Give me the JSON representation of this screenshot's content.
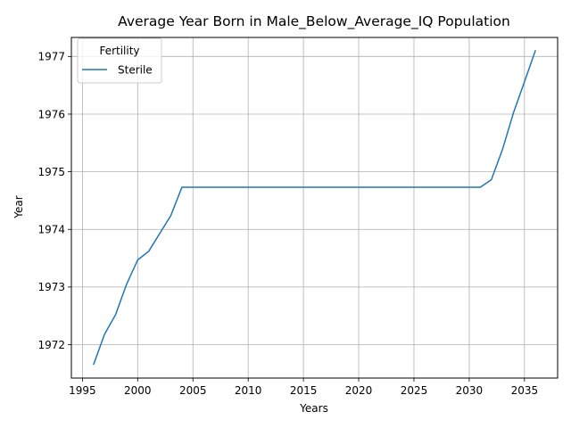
{
  "chart_data": {
    "type": "line",
    "title": "Average Year Born in Male_Below_Average_IQ Population",
    "xlabel": "Years",
    "ylabel": "Year",
    "xlim": [
      1994.0,
      2038.0
    ],
    "ylim": [
      1971.42,
      1977.33
    ],
    "xticks": [
      1995,
      2000,
      2005,
      2010,
      2015,
      2020,
      2025,
      2030,
      2035
    ],
    "yticks": [
      1972,
      1973,
      1974,
      1975,
      1976,
      1977
    ],
    "grid": true,
    "legend": {
      "title": "Fertility",
      "placement": "top-left"
    },
    "series": [
      {
        "name": "Sterile",
        "color": "#1f77b4",
        "x": [
          1996,
          1997,
          1998,
          1999,
          2000,
          2001,
          2002,
          2003,
          2004,
          2005,
          2006,
          2007,
          2008,
          2009,
          2010,
          2011,
          2012,
          2013,
          2014,
          2015,
          2016,
          2017,
          2018,
          2019,
          2020,
          2021,
          2022,
          2023,
          2024,
          2025,
          2026,
          2027,
          2028,
          2029,
          2030,
          2031,
          2032,
          2033,
          2034,
          2035,
          2036
        ],
        "y": [
          1971.65,
          1972.18,
          1972.52,
          1973.05,
          1973.47,
          1973.62,
          1973.93,
          1974.24,
          1974.73,
          1974.73,
          1974.73,
          1974.73,
          1974.73,
          1974.73,
          1974.73,
          1974.73,
          1974.73,
          1974.73,
          1974.73,
          1974.73,
          1974.73,
          1974.73,
          1974.73,
          1974.73,
          1974.73,
          1974.73,
          1974.73,
          1974.73,
          1974.73,
          1974.73,
          1974.73,
          1974.73,
          1974.73,
          1974.73,
          1974.73,
          1974.73,
          1974.86,
          1975.38,
          1976.02,
          1976.56,
          1977.11
        ]
      }
    ]
  }
}
